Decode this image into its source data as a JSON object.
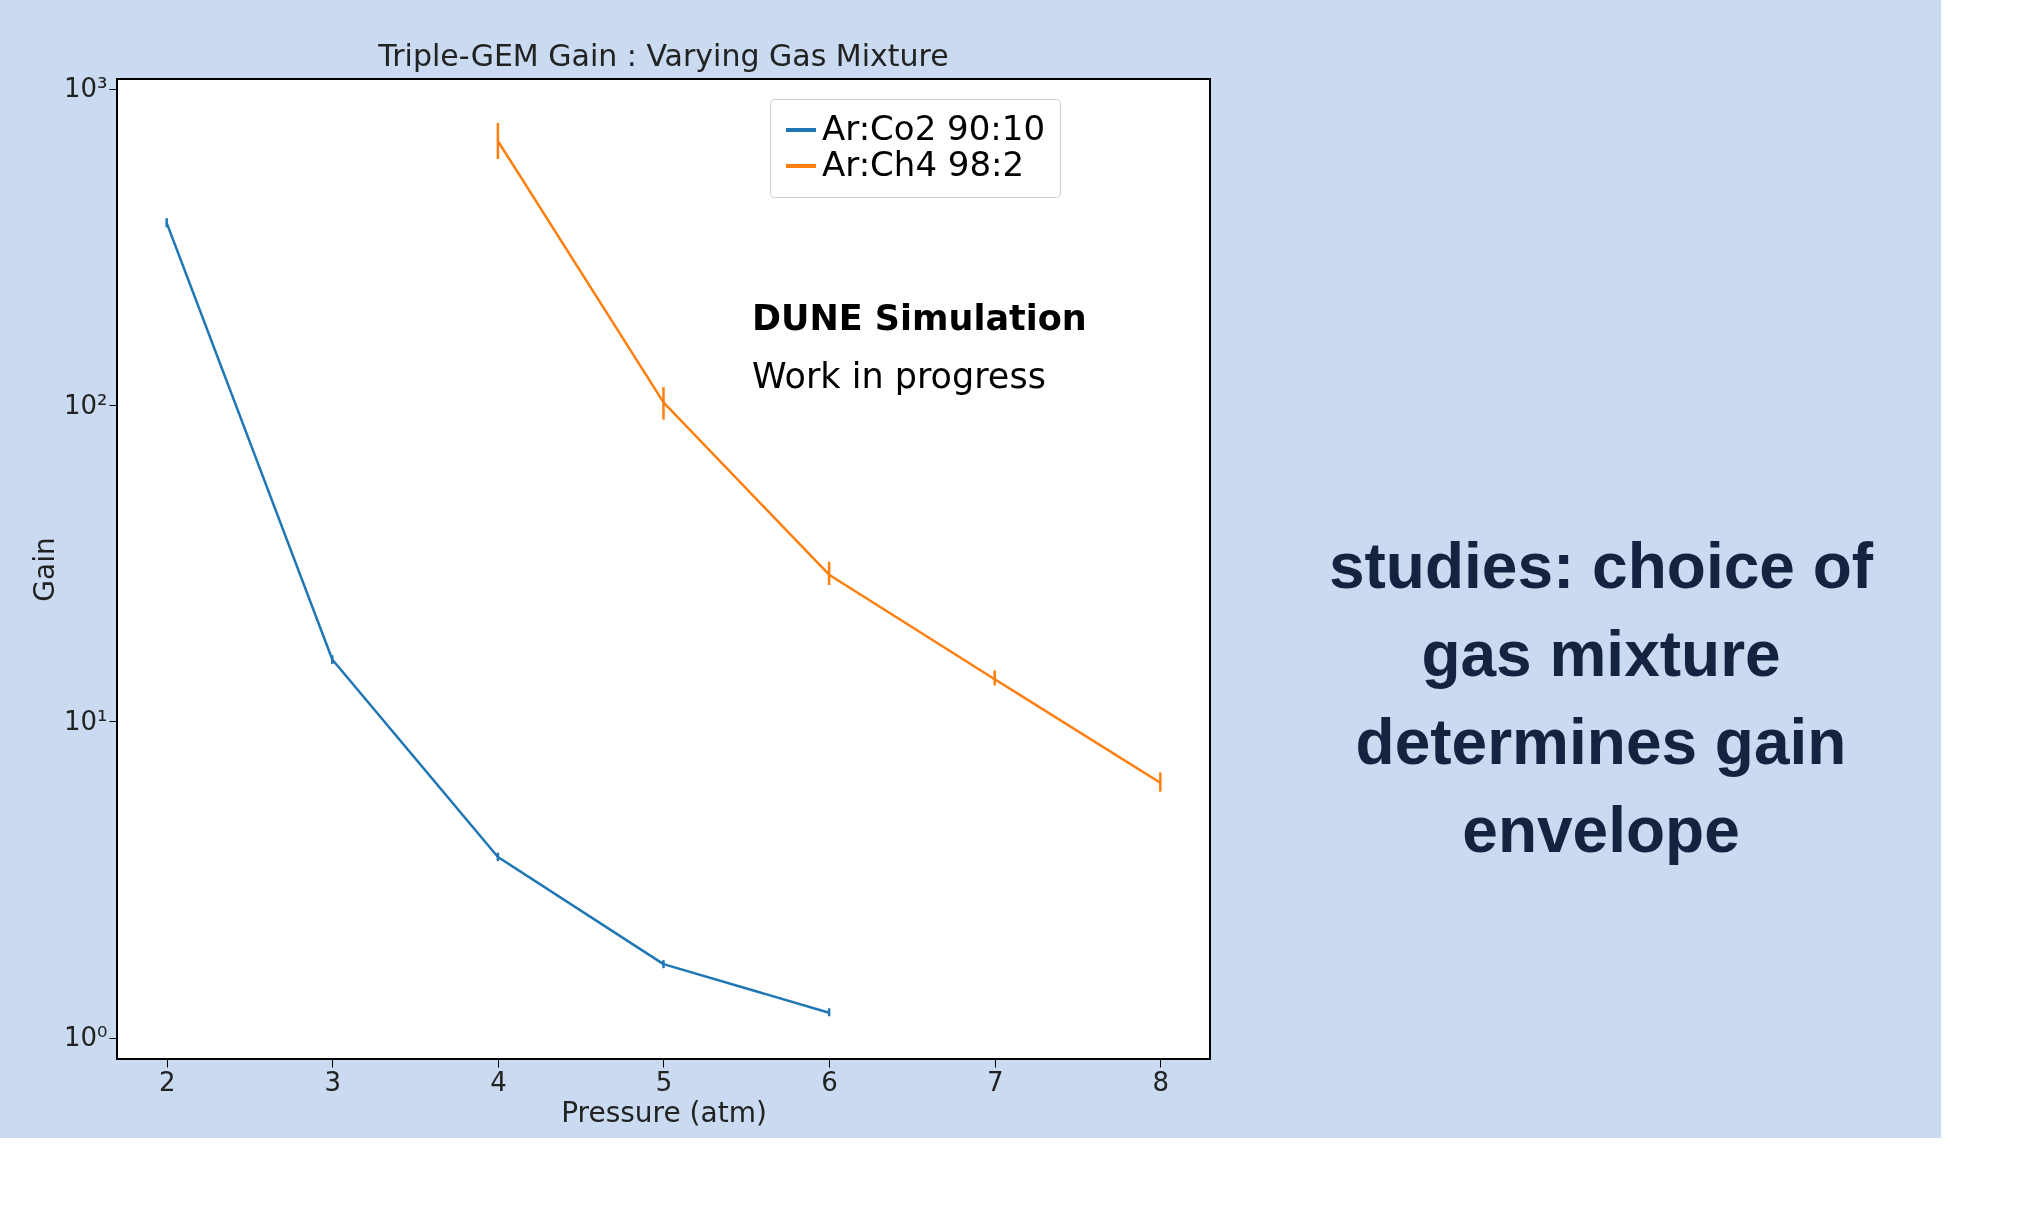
{
  "chart_data": {
    "type": "line",
    "title": "Triple-GEM Gain : Varying Gas Mixture",
    "xlabel": "Pressure (atm)",
    "ylabel": "Gain",
    "series": [
      {
        "name": "Ar:Co2 90:10",
        "color": "#1f77b4",
        "x": [
          2,
          3,
          4,
          5,
          6
        ],
        "values": [
          377,
          15.7,
          3.73,
          1.71,
          1.2
        ],
        "errors": [
          [
            365,
            390
          ],
          [
            15.2,
            16.2
          ],
          [
            3.62,
            3.85
          ],
          [
            1.66,
            1.76
          ],
          [
            1.17,
            1.24
          ]
        ]
      },
      {
        "name": "Ar:Ch4 98:2",
        "color": "#ff7f0e",
        "x": [
          4,
          5,
          6,
          7,
          8
        ],
        "values": [
          684,
          102,
          29.1,
          13.6,
          6.4
        ],
        "errors": [
          [
            600,
            780
          ],
          [
            90,
            114
          ],
          [
            27,
            32
          ],
          [
            13,
            14.5
          ],
          [
            6,
            6.9
          ]
        ]
      }
    ],
    "log": "y",
    "xlim": [
      1.7,
      8.3
    ],
    "ylim": [
      0.857,
      1074
    ],
    "xticks": [
      2,
      3,
      4,
      5,
      6,
      7,
      8
    ],
    "yticks": [
      {
        "value": 1,
        "label": "10⁰"
      },
      {
        "value": 10,
        "label": "10¹"
      },
      {
        "value": 100,
        "label": "10²"
      },
      {
        "value": 1000,
        "label": "10³"
      }
    ],
    "grid": false,
    "legend": "top right",
    "line_style": "solid",
    "annotations": [
      "DUNE Simulation",
      "Work in progress",
      "studies: choice of gas mixture determines gain envelope"
    ]
  }
}
